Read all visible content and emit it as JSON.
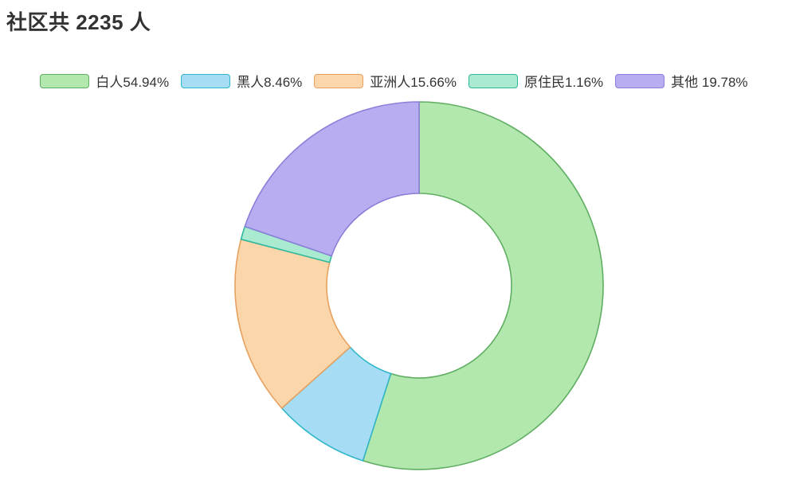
{
  "title": "社区共 2235 人",
  "chart_data": {
    "type": "pie",
    "subtype": "donut",
    "title": "社区共 2235 人",
    "total": 2235,
    "unit": "人",
    "legend_position": "top",
    "start_angle_deg": 0,
    "direction": "clockwise",
    "center": [
      526,
      359
    ],
    "outer_radius": 231,
    "inner_radius": 116,
    "stroke_width": 1.6,
    "series": [
      {
        "key": "white",
        "name": "白人",
        "value": 54.94,
        "legend_label": "白人54.94%",
        "color": "#b2e7ae",
        "border_color": "#5fae62"
      },
      {
        "key": "black",
        "name": "黑人",
        "value": 8.46,
        "legend_label": "黑人8.46%",
        "color": "#a7ddf4",
        "border_color": "#2fb6c9"
      },
      {
        "key": "asian",
        "name": "亚洲人",
        "value": 15.66,
        "legend_label": "亚洲人15.66%",
        "color": "#fcd6ab",
        "border_color": "#e6a161"
      },
      {
        "key": "indigenous",
        "name": "原住民",
        "value": 1.16,
        "legend_label": "原住民1.16%",
        "color": "#a9ead1",
        "border_color": "#30b89e"
      },
      {
        "key": "other",
        "name": "其他",
        "value": 19.78,
        "legend_label": "其他 19.78%",
        "color": "#b7adf0",
        "border_color": "#8b7fd9"
      }
    ]
  }
}
